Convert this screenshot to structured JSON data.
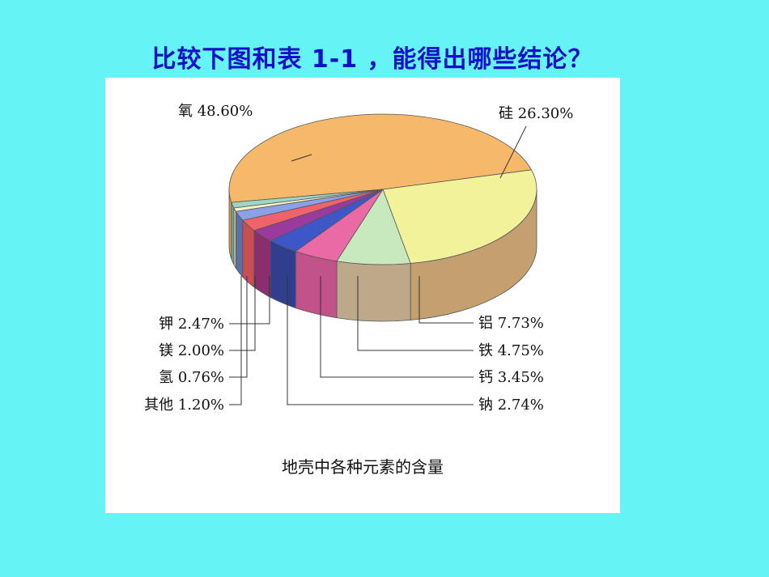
{
  "slide": {
    "title": "比较下图和表 1-1 ，能得出哪些结论？"
  },
  "chart_data": {
    "type": "pie",
    "caption": "地壳中各种元素的含量",
    "slices": [
      {
        "name": "氧",
        "value": 48.6,
        "label": "氧 48.60%",
        "color": "#F6B96A",
        "side": "#D99A52"
      },
      {
        "name": "硅",
        "value": 26.3,
        "label": "硅 26.30%",
        "color": "#F1F29A",
        "side": "#C4A070"
      },
      {
        "name": "铝",
        "value": 7.73,
        "label": "铝 7.73%",
        "color": "#C8E8BE",
        "side": "#BDA88A"
      },
      {
        "name": "铁",
        "value": 4.75,
        "label": "铁 4.75%",
        "color": "#E96AA4",
        "side": "#C2528A"
      },
      {
        "name": "钙",
        "value": 3.45,
        "label": "钙 3.45%",
        "color": "#3E57C8",
        "side": "#2F3F8E"
      },
      {
        "name": "钠",
        "value": 2.74,
        "label": "钠 2.74%",
        "color": "#9A3A9C",
        "side": "#8A2E6E"
      },
      {
        "name": "钾",
        "value": 2.47,
        "label": "钾 2.47%",
        "color": "#F0636A",
        "side": "#C84E54"
      },
      {
        "name": "镁",
        "value": 2.0,
        "label": "镁 2.00%",
        "color": "#8AA0E8",
        "side": "#5E6FA8"
      },
      {
        "name": "氢",
        "value": 0.76,
        "label": "氢 0.76%",
        "color": "#F7F4C8",
        "side": "#D8D0A0"
      },
      {
        "name": "其他",
        "value": 1.2,
        "label": "其他 1.20%",
        "color": "#9ED6C6",
        "side": "#6FA898"
      }
    ]
  }
}
